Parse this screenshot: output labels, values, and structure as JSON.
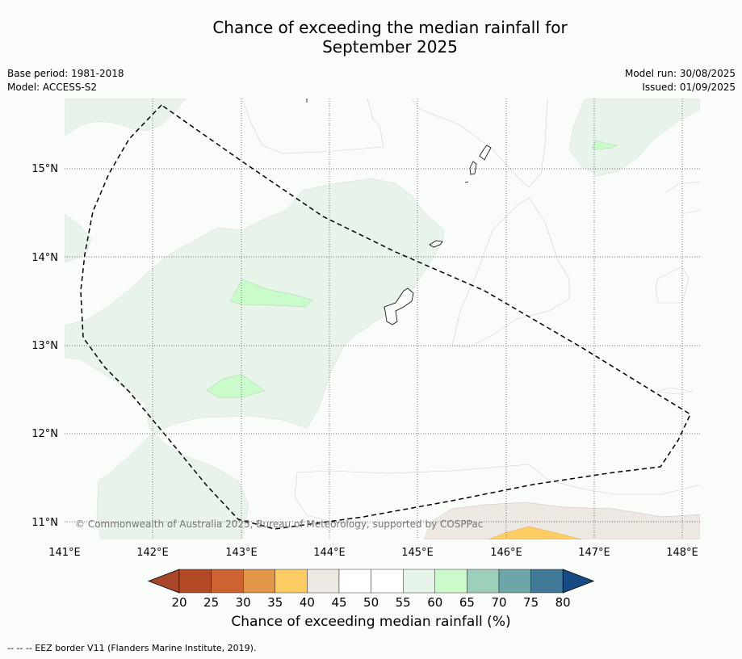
{
  "header": {
    "title_line1": "Chance of exceeding the median rainfall for",
    "title_line2": "September 2025",
    "base_period": "Base period: 1981-2018",
    "model": "Model: ACCESS-S2",
    "model_run": "Model run: 30/08/2025",
    "issued": "Issued: 01/09/2025"
  },
  "map": {
    "copyright": "© Commonwealth of Australia 2025, Bureau of Meteorology, supported by COSPPac",
    "lon_labels": [
      "141°E",
      "142°E",
      "143°E",
      "144°E",
      "145°E",
      "146°E",
      "147°E",
      "148°E"
    ],
    "lat_labels": [
      "15°N",
      "14°N",
      "13°N",
      "12°N",
      "11°N"
    ]
  },
  "chart_data": {
    "type": "heatmap",
    "title": "Chance of exceeding the median rainfall for September 2025",
    "xlabel": "",
    "ylabel": "",
    "xlim": [
      141.0,
      148.2
    ],
    "ylim": [
      10.8,
      15.8
    ],
    "grid": true,
    "colorbar": {
      "label": "Chance of exceeding median rainfall (%)",
      "ticks": [
        20,
        25,
        30,
        35,
        40,
        45,
        50,
        55,
        60,
        65,
        70,
        75,
        80
      ],
      "colors": [
        "#a8462a",
        "#b34a26",
        "#cc6330",
        "#e19548",
        "#fdcd63",
        "#ede8e2",
        "#ffffff",
        "#ffffff",
        "#e7f4e9",
        "#cafbca",
        "#9dcfba",
        "#6da5a8",
        "#417a98",
        "#174b84"
      ]
    },
    "footnote": "-- -- -- EEZ border V11 (Flanders Marine Institute, 2019)."
  }
}
